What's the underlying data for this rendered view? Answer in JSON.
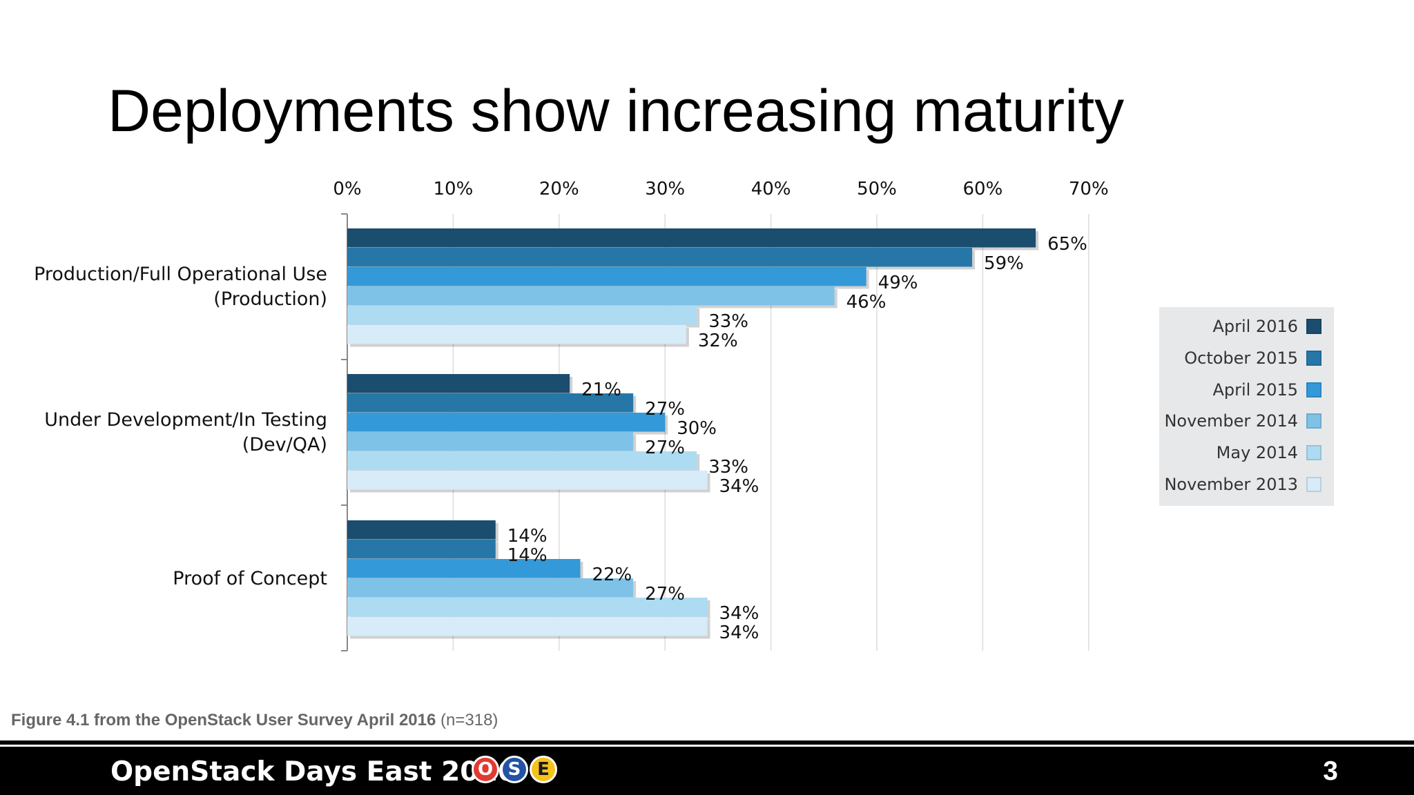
{
  "slide": {
    "title": "Deployments show increasing maturity",
    "source_bold": "Figure 4.1 from the OpenStack User Survey April 2016",
    "source_rest": " (n=318)"
  },
  "footer": {
    "event_title": "OpenStack Days East 2016",
    "logo_letters": [
      "O",
      "S",
      "E"
    ],
    "logo_colors": [
      "#e03a32",
      "#2352a6",
      "#f5c21b"
    ],
    "logo_text_colors": [
      "#ffffff",
      "#ffffff",
      "#1a1a1a"
    ],
    "page_number": "3"
  },
  "chart_data": {
    "type": "bar",
    "orientation": "horizontal",
    "categories": [
      "Production/Full Operational Use (Production)",
      "Under Development/In Testing (Dev/QA)",
      "Proof of Concept"
    ],
    "category_lines": [
      [
        "Production/Full Operational Use",
        "(Production)"
      ],
      [
        "Under Development/In Testing",
        "(Dev/QA)"
      ],
      [
        "Proof of Concept"
      ]
    ],
    "series": [
      {
        "name": "April 2016",
        "color": "#1b4d6e",
        "values": [
          65,
          21,
          14
        ]
      },
      {
        "name": "October 2015",
        "color": "#2677a8",
        "values": [
          59,
          27,
          14
        ]
      },
      {
        "name": "April 2015",
        "color": "#3399d8",
        "values": [
          49,
          30,
          22
        ]
      },
      {
        "name": "November 2014",
        "color": "#7fc2e8",
        "values": [
          46,
          27,
          27
        ]
      },
      {
        "name": "May 2014",
        "color": "#addcf2",
        "values": [
          33,
          33,
          34
        ]
      },
      {
        "name": "November 2013",
        "color": "#d7ebf8",
        "values": [
          32,
          34,
          34
        ]
      }
    ],
    "x_ticks": [
      "0%",
      "10%",
      "20%",
      "30%",
      "40%",
      "50%",
      "60%",
      "70%"
    ],
    "xlim": [
      0,
      70
    ],
    "x_axis_position": "top",
    "value_suffix": "%",
    "grid": true,
    "legend_position": "right"
  }
}
